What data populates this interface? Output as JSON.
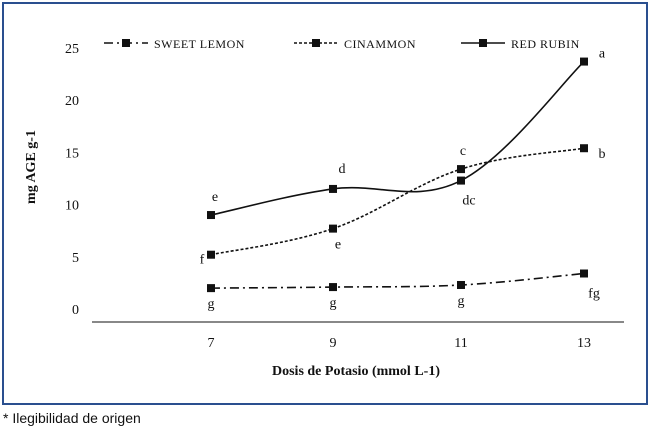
{
  "chart_data": {
    "type": "line",
    "title": "",
    "xlabel": "Dosis de Potasio (mmol L-1)",
    "ylabel": "mg AGE g-1",
    "x": [
      7,
      9,
      11,
      13
    ],
    "ylim": [
      0,
      25
    ],
    "yticks": [
      0,
      5,
      10,
      15,
      20,
      25
    ],
    "grid": false,
    "legend_position": "top",
    "series": [
      {
        "name": "SWEET LEMON",
        "line_style": "dash-dot",
        "values": [
          2.0,
          2.1,
          2.3,
          3.4
        ],
        "labels": [
          "g",
          "g",
          "g",
          "fg"
        ]
      },
      {
        "name": "CINAMMON",
        "line_style": "dotted",
        "values": [
          5.2,
          7.7,
          13.4,
          15.4
        ],
        "labels": [
          "f",
          "e",
          "c",
          "b"
        ]
      },
      {
        "name": "RED RUBIN",
        "line_style": "solid",
        "values": [
          9.0,
          11.5,
          12.3,
          23.7
        ],
        "labels": [
          "e",
          "d",
          "dc",
          "a"
        ]
      }
    ]
  },
  "footnote": "* Ilegibilidad de origen",
  "colors": {
    "frame": "#2a4f8f",
    "lines": "#111111"
  }
}
